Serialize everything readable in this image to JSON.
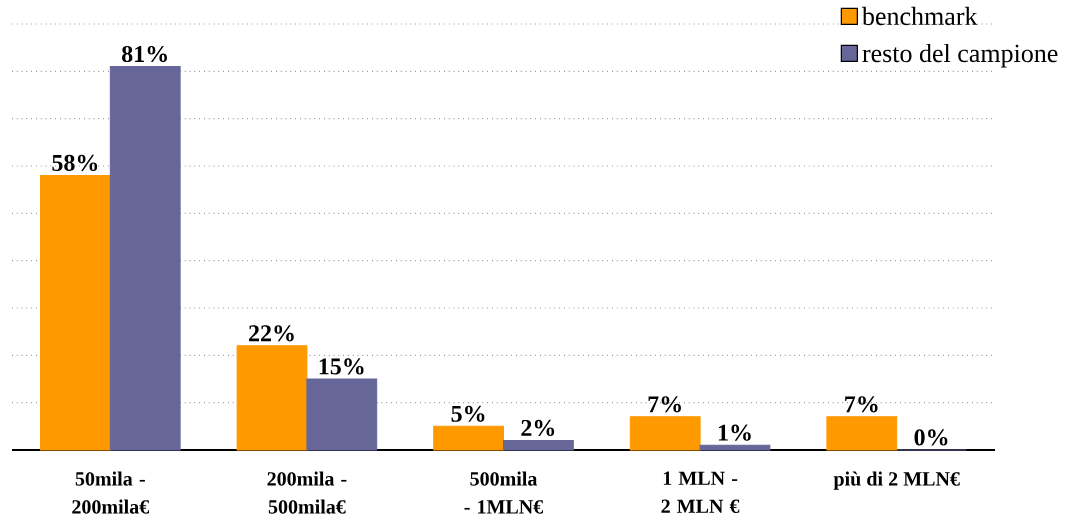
{
  "chart_data": {
    "type": "bar",
    "categories": [
      "50mila - 200mila€",
      "200mila - 500mila€",
      "500mila - 1MLN€",
      "1 MLN - 2 MLN €",
      "più di 2 MLN€"
    ],
    "series": [
      {
        "name": "benchmark",
        "color": "#ff9900",
        "values": [
          58,
          22,
          5,
          7,
          7
        ],
        "value_labels": [
          "58%",
          "22%",
          "5%",
          "7%",
          "7%"
        ]
      },
      {
        "name": "resto del campione",
        "color": "#666699",
        "values": [
          81,
          15,
          2,
          1,
          0
        ],
        "value_labels": [
          "81%",
          "15%",
          "2%",
          "1%",
          "0%"
        ]
      }
    ],
    "ylim": [
      0,
      90
    ],
    "yticks": [
      {
        "value": 0,
        "label": null
      },
      {
        "value": 10,
        "label": null
      },
      {
        "value": 20,
        "label": null
      },
      {
        "value": 30,
        "label": null
      },
      {
        "value": 40,
        "label": null
      },
      {
        "value": 50,
        "label": null
      },
      {
        "value": 60,
        "label": null
      },
      {
        "value": 70,
        "label": null
      },
      {
        "value": 80,
        "label": null
      },
      {
        "value": 90,
        "label": null
      }
    ],
    "tick_labels": "x",
    "grid": "y",
    "legend": "top right"
  }
}
